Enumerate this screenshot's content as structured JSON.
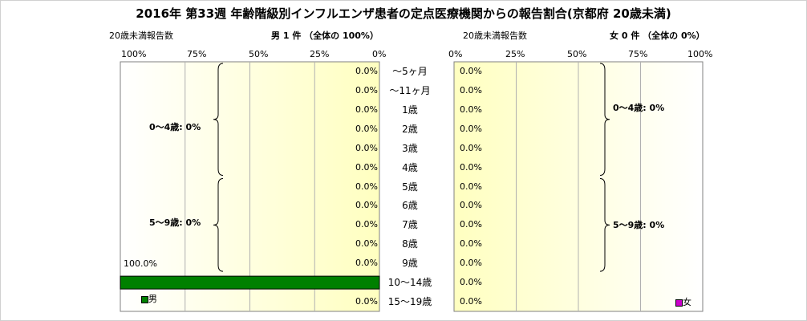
{
  "title": "2016年 第33週 年齢階級別インフルエンザ患者の定点医療機関からの報告割合(京都府 20歳未満)",
  "left_panel": {
    "caption": "20歳未満報告数",
    "header": "男 1 件 （全体の 100%）",
    "ticks": [
      "100%",
      "75%",
      "50%",
      "25%",
      "0%"
    ],
    "groups": [
      "0〜4歳: 0%",
      "5〜9歳: 0%"
    ],
    "legend": "男",
    "color": "#008000"
  },
  "right_panel": {
    "caption": "20歳未満報告数",
    "header": "女 0 件 （全体の 0%）",
    "ticks": [
      "0%",
      "25%",
      "50%",
      "75%",
      "100%"
    ],
    "groups": [
      "0〜4歳: 0%",
      "5〜9歳: 0%"
    ],
    "legend": "女",
    "color": "#cc00cc"
  },
  "chart_data": [
    {
      "type": "bar",
      "title": "男",
      "categories": [
        "〜5ヶ月",
        "〜11ヶ月",
        "1歳",
        "2歳",
        "3歳",
        "4歳",
        "5歳",
        "6歳",
        "7歳",
        "8歳",
        "9歳",
        "10〜14歳",
        "15〜19歳"
      ],
      "values": [
        0,
        0,
        0,
        0,
        0,
        0,
        0,
        0,
        0,
        0,
        0,
        100,
        0
      ],
      "labels": [
        "0.0%",
        "0.0%",
        "0.0%",
        "0.0%",
        "0.0%",
        "0.0%",
        "0.0%",
        "0.0%",
        "0.0%",
        "0.0%",
        "0.0%",
        "100.0%",
        "0.0%"
      ],
      "xlim": [
        100,
        0
      ],
      "orientation": "horizontal-reversed"
    },
    {
      "type": "bar",
      "title": "女",
      "categories": [
        "〜5ヶ月",
        "〜11ヶ月",
        "1歳",
        "2歳",
        "3歳",
        "4歳",
        "5歳",
        "6歳",
        "7歳",
        "8歳",
        "9歳",
        "10〜14歳",
        "15〜19歳"
      ],
      "values": [
        0,
        0,
        0,
        0,
        0,
        0,
        0,
        0,
        0,
        0,
        0,
        0,
        0
      ],
      "labels": [
        "0.0%",
        "0.0%",
        "0.0%",
        "0.0%",
        "0.0%",
        "0.0%",
        "0.0%",
        "0.0%",
        "0.0%",
        "0.0%",
        "0.0%",
        "0.0%",
        "0.0%"
      ],
      "xlim": [
        0,
        100
      ],
      "orientation": "horizontal"
    }
  ]
}
